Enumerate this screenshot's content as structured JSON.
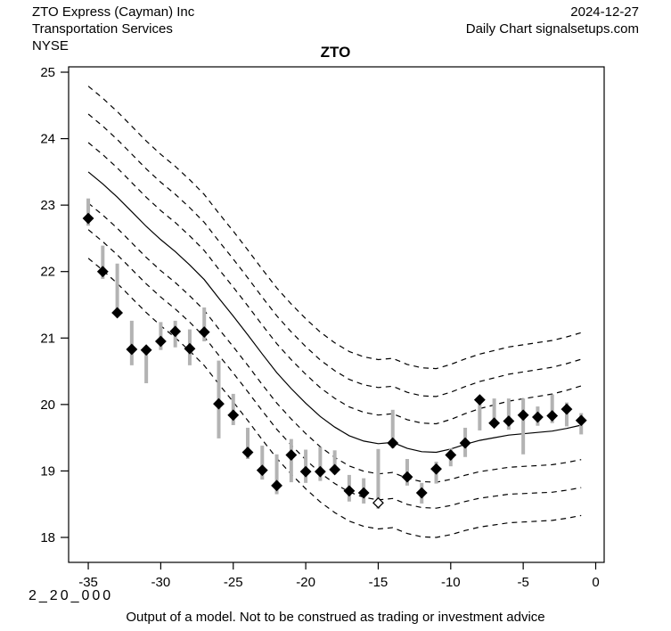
{
  "header": {
    "company": "ZTO Express (Cayman) Inc",
    "industry": "Transportation Services",
    "exchange": "NYSE",
    "date": "2024-12-27",
    "chart_source": "Daily Chart signalsetups.com"
  },
  "title": "ZTO",
  "footer": {
    "model_code": "2_20_000",
    "disclaimer": "Output of a model. Not to be construed as trading or investment advice"
  },
  "colors": {
    "background": "#ffffff",
    "line": "#000000",
    "candle_bar": "#b3b3b3",
    "diamond": "#000000",
    "hollow_diamond_fill": "#ffffff"
  },
  "chart_data": {
    "type": "line",
    "title": "ZTO",
    "xlabel": "",
    "ylabel": "",
    "xlim": [
      -36.4,
      0.6
    ],
    "ylim": [
      17.6,
      25.1
    ],
    "grid": false,
    "legend": "none",
    "xticks": [
      -35,
      -30,
      -25,
      -20,
      -15,
      -10,
      -5,
      0
    ],
    "yticks": [
      18,
      19,
      20,
      21,
      22,
      23,
      24,
      25
    ],
    "x": [
      -35,
      -34,
      -33,
      -32,
      -31,
      -30,
      -29,
      -28,
      -27,
      -26,
      -25,
      -24,
      -23,
      -22,
      -21,
      -20,
      -19,
      -18,
      -17,
      -16,
      -15,
      -14,
      -13,
      -12,
      -11,
      -10,
      -9,
      -8,
      -7,
      -6,
      -5,
      -4,
      -3,
      -2,
      -1
    ],
    "center_line": {
      "name": "model-center",
      "style": "solid",
      "values": [
        23.5,
        23.32,
        23.12,
        22.9,
        22.68,
        22.48,
        22.3,
        22.1,
        21.88,
        21.6,
        21.33,
        21.05,
        20.76,
        20.48,
        20.24,
        20.02,
        19.82,
        19.66,
        19.53,
        19.45,
        19.41,
        19.43,
        19.34,
        19.29,
        19.28,
        19.33,
        19.4,
        19.46,
        19.5,
        19.54,
        19.56,
        19.58,
        19.6,
        19.64,
        19.69
      ]
    },
    "bands": {
      "style": "dashed",
      "anchors_t": [
        -35,
        -11,
        -1
      ],
      "offsets": [
        {
          "name": "upper-band-3",
          "at_anchors": [
            1.29,
            1.26,
            1.39
          ]
        },
        {
          "name": "upper-band-2",
          "at_anchors": [
            0.87,
            0.84,
            0.99
          ]
        },
        {
          "name": "upper-band-1",
          "at_anchors": [
            0.44,
            0.43,
            0.59
          ]
        },
        {
          "name": "lower-band-1",
          "at_anchors": [
            -0.47,
            -0.45,
            -0.52
          ]
        },
        {
          "name": "lower-band-2",
          "at_anchors": [
            -0.87,
            -0.84,
            -0.94
          ]
        },
        {
          "name": "lower-band-3",
          "at_anchors": [
            -1.3,
            -1.28,
            -1.36
          ]
        }
      ]
    },
    "candles_note": "each candle = [t, high, low, close]; gray bar = high-low range, diamond = close",
    "candles": [
      [
        -35,
        23.1,
        22.69,
        22.8
      ],
      [
        -34,
        22.39,
        21.89,
        22.0
      ],
      [
        -33,
        22.12,
        21.36,
        21.38
      ],
      [
        -32,
        21.26,
        20.59,
        20.83
      ],
      [
        -31,
        20.84,
        20.32,
        20.82
      ],
      [
        -30,
        21.24,
        20.82,
        20.95
      ],
      [
        -29,
        21.26,
        20.86,
        21.1
      ],
      [
        -28,
        21.13,
        20.59,
        20.84
      ],
      [
        -27,
        21.46,
        20.95,
        21.09
      ],
      [
        -26,
        20.66,
        19.49,
        20.01
      ],
      [
        -25,
        20.16,
        19.69,
        19.84
      ],
      [
        -24,
        19.65,
        19.18,
        19.28
      ],
      [
        -23,
        19.38,
        18.87,
        19.01
      ],
      [
        -22,
        19.25,
        18.65,
        18.78
      ],
      [
        -21,
        19.48,
        18.83,
        19.24
      ],
      [
        -20,
        19.32,
        18.82,
        18.99
      ],
      [
        -19,
        19.36,
        18.85,
        18.99
      ],
      [
        -18,
        19.31,
        18.95,
        19.02
      ],
      [
        -17,
        18.94,
        18.54,
        18.7
      ],
      [
        -16,
        18.89,
        18.51,
        18.67
      ],
      [
        -15,
        19.33,
        18.43,
        18.52
      ],
      [
        -14,
        19.92,
        19.34,
        19.42
      ],
      [
        -13,
        19.18,
        18.78,
        18.91
      ],
      [
        -12,
        18.82,
        18.51,
        18.67
      ],
      [
        -11,
        19.14,
        18.81,
        19.03
      ],
      [
        -10,
        19.34,
        19.07,
        19.24
      ],
      [
        -9,
        19.65,
        19.21,
        19.42
      ],
      [
        -8,
        20.09,
        19.61,
        20.07
      ],
      [
        -7,
        20.09,
        19.68,
        19.72
      ],
      [
        -6,
        20.09,
        19.62,
        19.75
      ],
      [
        -5,
        20.09,
        19.25,
        19.84
      ],
      [
        -4,
        19.97,
        19.68,
        19.81
      ],
      [
        -3,
        20.15,
        19.72,
        19.83
      ],
      [
        -2,
        20.03,
        19.67,
        19.93
      ],
      [
        -1,
        19.87,
        19.55,
        19.76
      ]
    ],
    "hollow_marker_at": -15
  }
}
